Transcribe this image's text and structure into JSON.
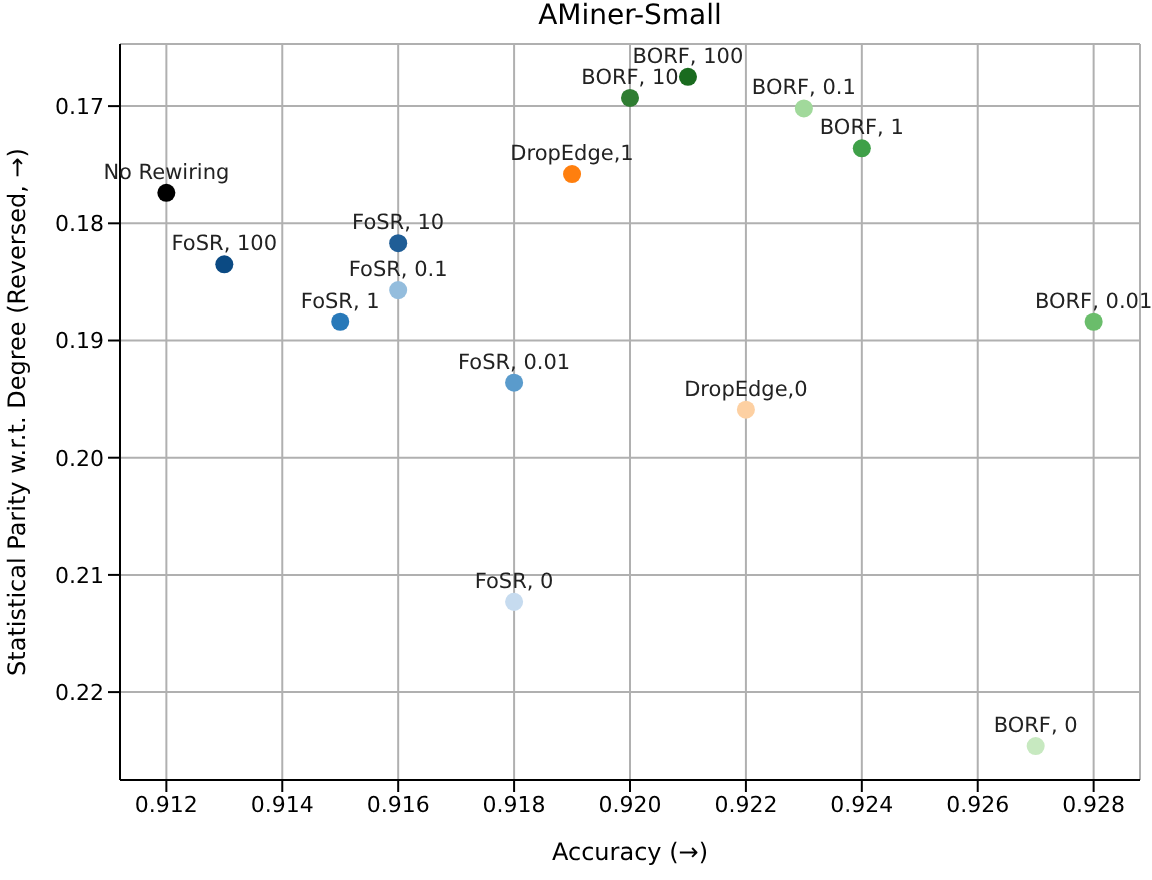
{
  "chart_data": {
    "type": "scatter",
    "title": "AMiner-Small",
    "xlabel": "Accuracy (→)",
    "ylabel": "Statistical Parity w.r.t. Degree (Reversed, →)",
    "x": [
      0.912,
      0.913,
      0.916,
      0.916,
      0.915,
      0.918,
      0.918,
      0.919,
      0.922,
      0.92,
      0.921,
      0.923,
      0.924,
      0.928,
      0.927
    ],
    "values": [
      0.1774,
      0.1835,
      0.1817,
      0.1857,
      0.1884,
      0.1936,
      0.2123,
      0.1758,
      0.1959,
      0.1693,
      0.1675,
      0.1702,
      0.1736,
      0.1884,
      0.2246
    ],
    "colors": [
      "#000000",
      "#0b4a83",
      "#1f5d96",
      "#94bddd",
      "#2879b9",
      "#5a9bcc",
      "#c6dbef",
      "#ff7f0e",
      "#fdd0a2",
      "#2f7d32",
      "#1a6b1f",
      "#a1d99b",
      "#3fa048",
      "#6abd6b",
      "#c7e9c0"
    ],
    "xlim": [
      0.9112,
      0.9288
    ],
    "xticks": [
      0.912,
      0.914,
      0.916,
      0.918,
      {
        "value": 0.92,
        "label": "0.920"
      },
      0.922,
      0.924,
      0.926,
      0.928
    ],
    "ylim": [
      0.2275,
      0.1647
    ],
    "yticks": [
      0.17,
      0.18,
      0.19,
      {
        "value": 0.2,
        "label": "0.20"
      },
      0.21,
      0.22
    ],
    "grid": true,
    "marker": "circle",
    "annotations": [
      {
        "text": "No Rewiring",
        "x": 0.912,
        "y": 0.1774
      },
      {
        "text": "FoSR, 100",
        "x": 0.913,
        "y": 0.1835
      },
      {
        "text": "FoSR, 10",
        "x": 0.916,
        "y": 0.1817
      },
      {
        "text": "FoSR, 0.1",
        "x": 0.916,
        "y": 0.1857
      },
      {
        "text": "FoSR, 1",
        "x": 0.915,
        "y": 0.1884
      },
      {
        "text": "FoSR, 0.01",
        "x": 0.918,
        "y": 0.1936
      },
      {
        "text": "FoSR, 0",
        "x": 0.918,
        "y": 0.2123
      },
      {
        "text": "DropEdge,1",
        "x": 0.919,
        "y": 0.1758
      },
      {
        "text": "DropEdge,0",
        "x": 0.922,
        "y": 0.1959
      },
      {
        "text": "BORF, 10",
        "x": 0.92,
        "y": 0.1693
      },
      {
        "text": "BORF, 100",
        "x": 0.921,
        "y": 0.1675
      },
      {
        "text": "BORF, 0.1",
        "x": 0.923,
        "y": 0.1702
      },
      {
        "text": "BORF, 1",
        "x": 0.924,
        "y": 0.1736
      },
      {
        "text": "BORF, 0.01",
        "x": 0.928,
        "y": 0.1884
      },
      {
        "text": "BORF, 0",
        "x": 0.927,
        "y": 0.2246
      }
    ]
  }
}
